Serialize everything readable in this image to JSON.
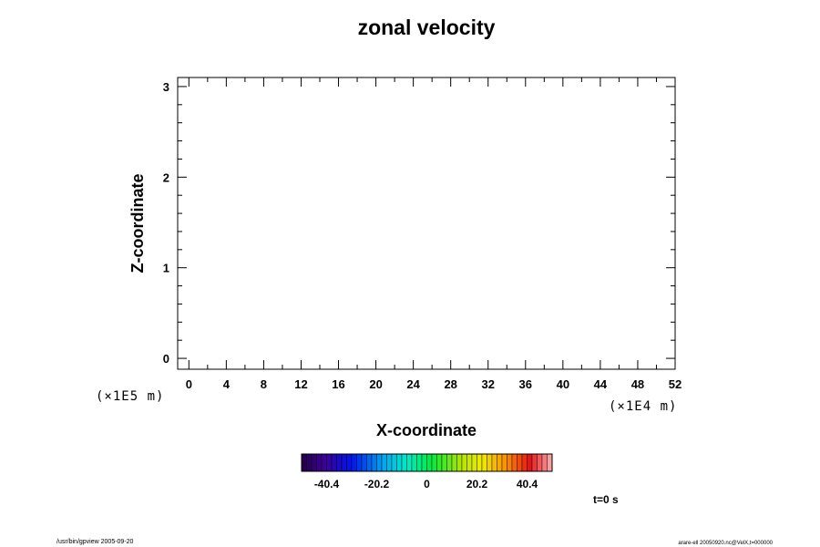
{
  "chart_data": {
    "type": "heatmap",
    "title": "zonal velocity",
    "xlabel": "X-coordinate",
    "ylabel": "Z-coordinate",
    "x_unit": "(×1E4 m)",
    "y_unit": "(×1E5 m)",
    "xlim": [
      -1.2,
      52
    ],
    "ylim": [
      -0.12,
      3.1
    ],
    "x_ticks": [
      "0",
      "4",
      "8",
      "12",
      "16",
      "20",
      "24",
      "28",
      "32",
      "36",
      "40",
      "44",
      "48",
      "52"
    ],
    "y_ticks": [
      "0",
      "1",
      "2",
      "3"
    ],
    "grid": false,
    "values": [],
    "colorbar": {
      "min": -50.5,
      "max": 50.5,
      "levels": 50,
      "tick_labels": [
        "-40.4",
        "-20.2",
        "0",
        "20.2",
        "40.4"
      ],
      "tick_values": [
        -40.4,
        -20.2,
        0,
        20.2,
        40.4
      ]
    },
    "time_label": "t=0 s"
  },
  "footer": {
    "left": "/usr/bin/gpview 2005-09-20",
    "right": "arare-ell 20050920.nc@VelX,t=000000"
  }
}
